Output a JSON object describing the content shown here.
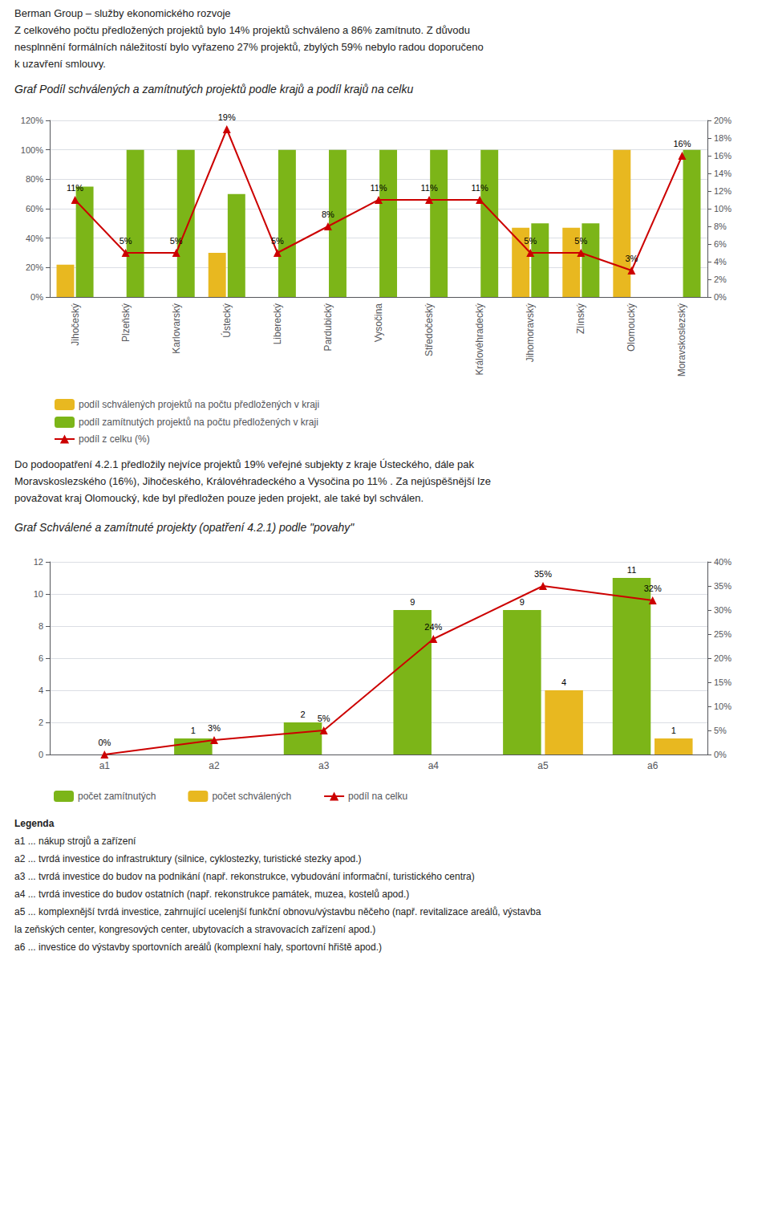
{
  "chart_data": [
    {
      "type": "bar",
      "title": "Graf Podíl schválených a zamítnutých projektů podle krajů a podíl krajů na celku",
      "annotations": [
        "Berman Group – služby ekonomického rozvoje",
        "Z celkového počtu předložených projektů bylo 14% projektů schváleno a 86% zamítnuto. Z důvodu",
        "nesplnnění formálních náležitostí bylo vyřazeno 27% projektů, zbylých 59% nebylo radou doporučeno",
        "k uzavření smlouvy."
      ],
      "categories": [
        "Jihočeský",
        "Plzeňský",
        "Karlovarský",
        "Ústecký",
        "Liberecký",
        "Pardubický",
        "Vysočina",
        "Středočeský",
        "Královéhradecký",
        "Jihomoravský",
        "Zlínský",
        "Olomoucký",
        "Moravskoslezský"
      ],
      "series": [
        {
          "name": "podíl schválených projektů na počtu předložených v kraji",
          "color": "#E8B820",
          "values": [
            0.22,
            0.0,
            0.0,
            0.3,
            0.0,
            0.0,
            0.0,
            0.0,
            0.0,
            0.47,
            0.47,
            1.0,
            0.0
          ]
        },
        {
          "name": "podíl zamítnutých projektů na počtu předložených v kraji",
          "color": "#7CB518",
          "values": [
            0.75,
            1.0,
            1.0,
            0.7,
            1.0,
            1.0,
            1.0,
            1.0,
            1.0,
            0.5,
            0.5,
            0.0,
            1.0
          ]
        },
        {
          "name": "podíl z celku (%)",
          "type": "line",
          "axis": "y2",
          "color": "#CC0000",
          "marker": "triangle",
          "data_labels": true,
          "values": [
            0.11,
            0.05,
            0.05,
            0.19,
            0.05,
            0.08,
            0.11,
            0.11,
            0.11,
            0.05,
            0.05,
            0.03,
            0.16
          ],
          "value_labels": [
            "11%",
            "5%",
            "5%",
            "19%",
            "5%",
            "8%",
            "11%",
            "11%",
            "11%",
            "5%",
            "5%",
            "3%",
            "16%"
          ]
        }
      ],
      "ylim": [
        0,
        1.2
      ],
      "yticks": [
        {
          "value": 0,
          "label": "0%"
        },
        {
          "value": 0.2,
          "label": "20%"
        },
        {
          "value": 0.4,
          "label": "40%"
        },
        {
          "value": 0.6,
          "label": "60%"
        },
        {
          "value": 0.8,
          "label": "80%"
        },
        {
          "value": 1.0,
          "label": "100%"
        },
        {
          "value": 1.2,
          "label": "120%"
        }
      ],
      "y2lim": [
        0,
        0.2
      ],
      "y2ticks": [
        {
          "value": 0,
          "label": "0%"
        },
        {
          "value": 0.02,
          "label": "2%"
        },
        {
          "value": 0.04,
          "label": "4%"
        },
        {
          "value": 0.06,
          "label": "6%"
        },
        {
          "value": 0.08,
          "label": "8%"
        },
        {
          "value": 0.1,
          "label": "10%"
        },
        {
          "value": 0.12,
          "label": "12%"
        },
        {
          "value": 0.14,
          "label": "14%"
        },
        {
          "value": 0.16,
          "label": "16%"
        },
        {
          "value": 0.18,
          "label": "18%"
        },
        {
          "value": 0.2,
          "label": "20%"
        }
      ],
      "grid": true,
      "legend": "bottom"
    },
    {
      "type": "bar",
      "title": "Graf Schválené a zamítnuté projekty (opatření 4.2.1) podle \"povahy\"",
      "annotations": [
        "Do podoopatření 4.2.1 předložily nejvíce projektů 19% veřejné subjekty z kraje Ústeckého, dále pak",
        "Moravskoslezského (16%), Jihočeského, Královéhradeckého a Vysočina po 11% . Za nejúspěšnější lze",
        "považovat kraj Olomoucký, kde byl předložen pouze jeden projekt, ale také byl schválen."
      ],
      "notes": [
        "Legenda",
        "a1 ... nákup strojů a zařízení",
        "a2 ... tvrdá investice do infrastruktury (silnice, cyklostezky, turistické stezky apod.)",
        "a3 ... tvrdá investice do budov na podnikání (např. rekonstrukce, vybudování informační, turistického centra)",
        "a4 ... tvrdá investice do budov ostatních (např. rekonstrukce památek, muzea, kostelů apod.)",
        "a5 ... komplexnější tvrdá investice, zahrnující ucelenjší funkční obnovu/výstavbu něčeho (např. revitalizace areálů, výstavba",
        "la zeňských center, kongresových center, ubytovacích a stravovacích zařízení apod.)",
        "a6 ... investice do výstavby sportovních areálů (komplexní haly, sportovní hřiště apod.)"
      ],
      "categories": [
        "a1",
        "a2",
        "a3",
        "a4",
        "a5",
        "a6"
      ],
      "series": [
        {
          "name": "počet zamítnutých",
          "color": "#7CB518",
          "values": [
            0,
            1,
            2,
            9,
            9,
            11
          ],
          "value_labels": [
            null,
            "1",
            "2",
            "9",
            "9",
            "11"
          ]
        },
        {
          "name": "počet schválených",
          "color": "#E8B820",
          "values": [
            0,
            0,
            0,
            0,
            4,
            1
          ],
          "value_labels": [
            null,
            null,
            null,
            null,
            "4",
            "1"
          ]
        },
        {
          "name": "podíl na celku",
          "type": "line",
          "axis": "y2",
          "color": "#CC0000",
          "marker": "triangle",
          "values": [
            0.0,
            0.03,
            0.05,
            0.24,
            0.35,
            0.32
          ],
          "value_labels": [
            "0%",
            "3%",
            "5%",
            "24%",
            "35%",
            "32%"
          ]
        }
      ],
      "ylim": [
        0,
        12
      ],
      "yticks": [
        0,
        2,
        4,
        6,
        8,
        10,
        12
      ],
      "y2lim": [
        0,
        0.4
      ],
      "y2ticks": [
        {
          "value": 0,
          "label": "0%"
        },
        {
          "value": 0.05,
          "label": "5%"
        },
        {
          "value": 0.1,
          "label": "10%"
        },
        {
          "value": 0.15,
          "label": "15%"
        },
        {
          "value": 0.2,
          "label": "20%"
        },
        {
          "value": 0.25,
          "label": "25%"
        },
        {
          "value": 0.3,
          "label": "30%"
        },
        {
          "value": 0.35,
          "label": "35%"
        },
        {
          "value": 0.4,
          "label": "40%"
        }
      ],
      "grid": true,
      "data_labels": true,
      "legend": "bottom"
    }
  ]
}
